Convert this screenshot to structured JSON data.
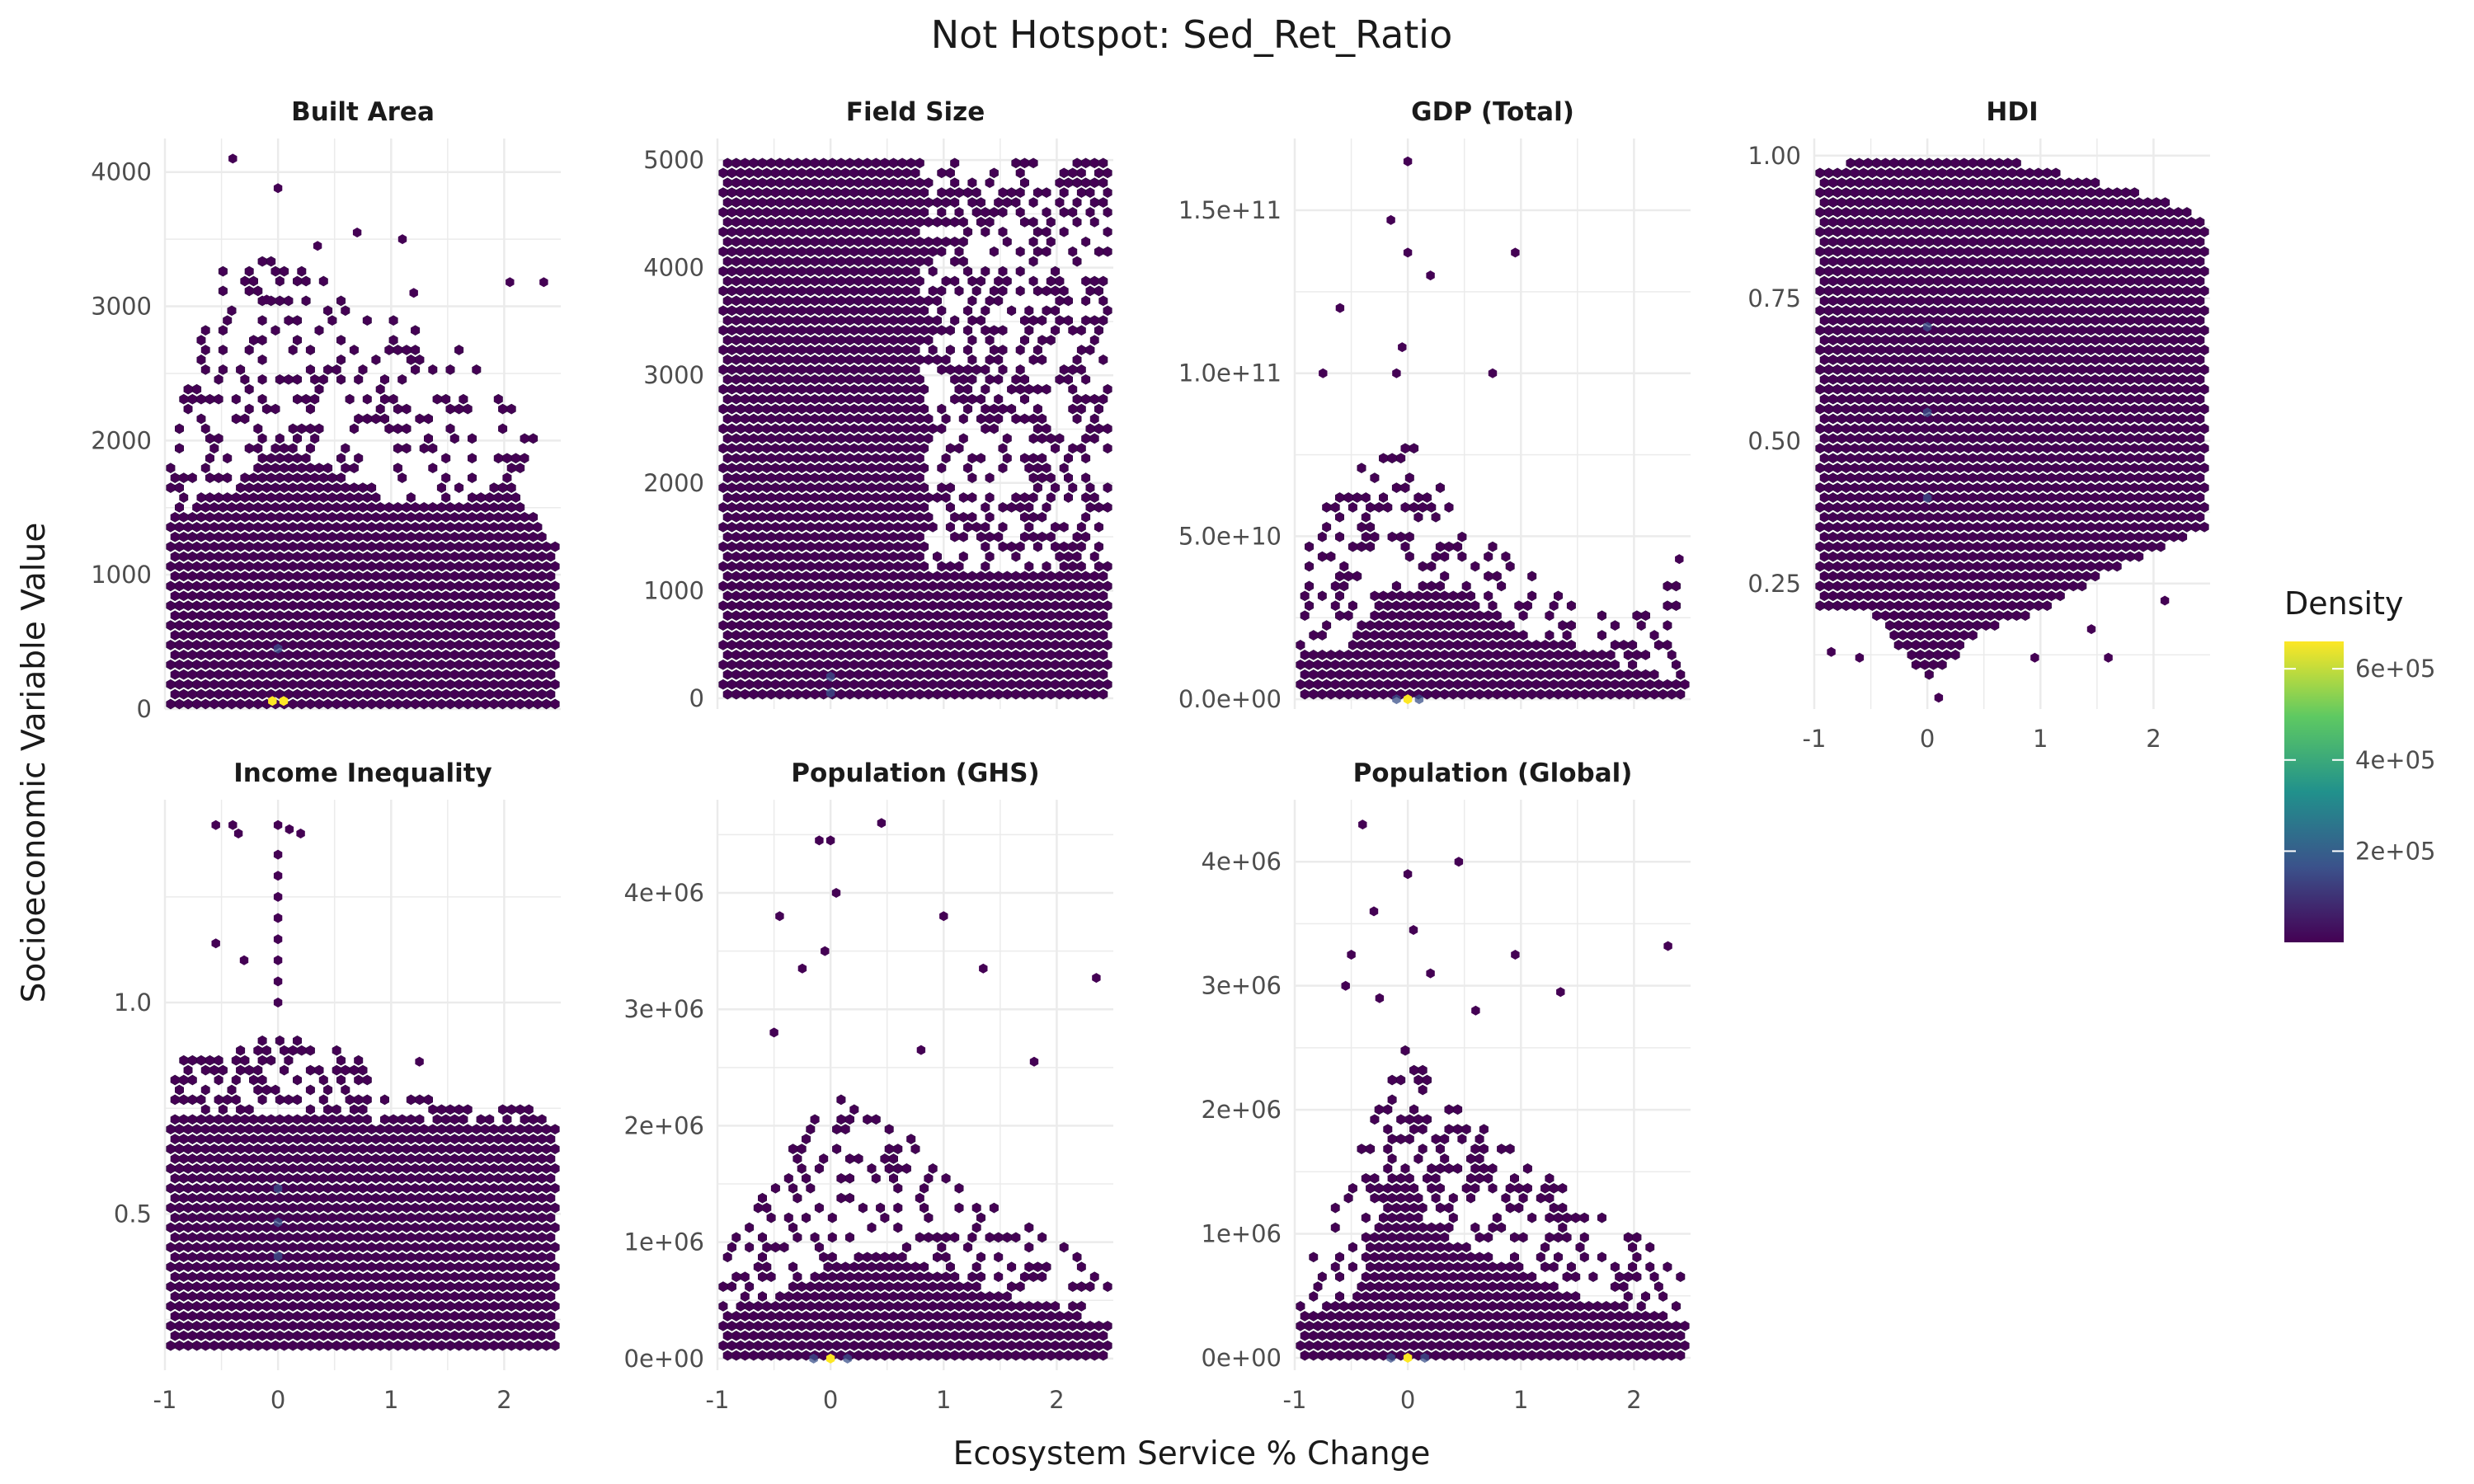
{
  "chart_data": {
    "type": "hexbin",
    "title": "Not Hotspot: Sed_Ret_Ratio",
    "xlabel": "Ecosystem Service % Change",
    "ylabel": "Socioeconomic Variable Value",
    "xlim": [
      -1,
      2.5
    ],
    "x_ticks": [
      "-1",
      "0",
      "1",
      "2"
    ],
    "grid": true,
    "colors": {
      "fill_base": "#440154",
      "hot_medium": "#3b528b",
      "hot_peak": "#fde725",
      "grid": "#ebebeb"
    },
    "legend": {
      "title": "Density",
      "position": "right",
      "ticks": [
        "2e+05",
        "4e+05",
        "6e+05"
      ],
      "tick_values": [
        200000,
        400000,
        600000
      ],
      "range": [
        0,
        660000
      ],
      "colormap": [
        "#440154",
        "#3b528b",
        "#21918c",
        "#5ec962",
        "#fde725"
      ]
    },
    "panels": [
      {
        "label": "Built Area",
        "ylim": [
          0,
          4250
        ],
        "y_ticks": [
          {
            "v": 0,
            "t": "0"
          },
          {
            "v": 1000,
            "t": "1000"
          },
          {
            "v": 2000,
            "t": "2000"
          },
          {
            "v": 3000,
            "t": "3000"
          },
          {
            "v": 4000,
            "t": "4000"
          }
        ],
        "dense_min": 0,
        "dense_max_profile": [
          [
            -0.95,
            1450
          ],
          [
            -0.6,
            1550
          ],
          [
            -0.3,
            1700
          ],
          [
            0,
            2050
          ],
          [
            0.5,
            1750
          ],
          [
            1.0,
            1550
          ],
          [
            1.5,
            1500
          ],
          [
            2.0,
            1700
          ],
          [
            2.25,
            1450
          ],
          [
            2.4,
            1250
          ]
        ],
        "sparse_max_profile": [
          [
            -0.95,
            2000
          ],
          [
            -0.5,
            3300
          ],
          [
            0,
            3400
          ],
          [
            0.5,
            3200
          ],
          [
            1.0,
            2900
          ],
          [
            1.5,
            2800
          ],
          [
            2.0,
            2300
          ],
          [
            2.4,
            1900
          ]
        ],
        "sparse_density": 0.3,
        "outliers": [
          [
            -0.4,
            4100
          ],
          [
            0,
            3880
          ],
          [
            -0.1,
            3050
          ],
          [
            0.35,
            3450
          ],
          [
            0.7,
            3550
          ],
          [
            1.1,
            3500
          ],
          [
            2.05,
            3180
          ],
          [
            2.35,
            3180
          ],
          [
            1.2,
            3100
          ]
        ],
        "hot": [
          [
            -0.05,
            60,
            "peak"
          ],
          [
            0.05,
            60,
            "peak"
          ],
          [
            0,
            450,
            "mid"
          ]
        ]
      },
      {
        "label": "Field Size",
        "ylim": [
          -100,
          5200
        ],
        "y_ticks": [
          {
            "v": 0,
            "t": "0"
          },
          {
            "v": 1000,
            "t": "1000"
          },
          {
            "v": 2000,
            "t": "2000"
          },
          {
            "v": 3000,
            "t": "3000"
          },
          {
            "v": 4000,
            "t": "4000"
          },
          {
            "v": 5000,
            "t": "5000"
          }
        ],
        "dense_min": 0,
        "dense_max_profile": [
          [
            -0.95,
            5000
          ],
          [
            0.8,
            5000
          ],
          [
            0.85,
            1150
          ],
          [
            2.45,
            1150
          ]
        ],
        "sparse_max_profile": [
          [
            0.85,
            5000
          ],
          [
            2.45,
            5000
          ]
        ],
        "sparse_density": 0.45,
        "outliers": [],
        "hot": [
          [
            0,
            50,
            "mid"
          ],
          [
            0,
            200,
            "mid"
          ]
        ]
      },
      {
        "label": "GDP (Total)",
        "ylim": [
          -3000000000,
          172000000000
        ],
        "y_ticks": [
          {
            "v": 0,
            "t": "0.0e+00"
          },
          {
            "v": 50000000000,
            "t": "5.0e+10"
          },
          {
            "v": 100000000000,
            "t": "1.0e+11"
          },
          {
            "v": 150000000000,
            "t": "1.5e+11"
          }
        ],
        "dense_min": 0,
        "dense_max_profile": [
          [
            -0.95,
            16000000000
          ],
          [
            -0.5,
            16000000000
          ],
          [
            -0.2,
            33000000000
          ],
          [
            0.3,
            36000000000
          ],
          [
            1.0,
            20000000000
          ],
          [
            1.6,
            15000000000
          ],
          [
            2.0,
            9000000000
          ],
          [
            2.45,
            6000000000
          ]
        ],
        "sparse_max_profile": [
          [
            -0.95,
            50000000000
          ],
          [
            -0.5,
            70000000000
          ],
          [
            0,
            80000000000
          ],
          [
            0.5,
            62000000000
          ],
          [
            1.0,
            40000000000
          ],
          [
            1.5,
            32000000000
          ],
          [
            2.0,
            26000000000
          ],
          [
            2.45,
            42000000000
          ]
        ],
        "sparse_density": 0.3,
        "outliers": [
          [
            0,
            165000000000
          ],
          [
            -0.15,
            147000000000
          ],
          [
            0,
            137000000000
          ],
          [
            0.2,
            130000000000
          ],
          [
            0.95,
            137000000000
          ],
          [
            -0.6,
            120000000000
          ],
          [
            -0.75,
            100000000000
          ],
          [
            0.75,
            100000000000
          ],
          [
            -0.1,
            100000000000
          ],
          [
            -0.05,
            108000000000
          ],
          [
            2.4,
            43000000000
          ]
        ],
        "hot": [
          [
            0,
            0,
            "peak"
          ],
          [
            -0.1,
            0,
            "mid"
          ],
          [
            0.1,
            0,
            "mid"
          ]
        ]
      },
      {
        "label": "HDI",
        "ylim": [
          0.03,
          1.03
        ],
        "y_ticks": [
          {
            "v": 0.25,
            "t": "0.25"
          },
          {
            "v": 0.5,
            "t": "0.50"
          },
          {
            "v": 0.75,
            "t": "0.75"
          },
          {
            "v": 1.0,
            "t": "1.00"
          }
        ],
        "dense_min_profile": [
          [
            -0.95,
            0.2
          ],
          [
            -0.5,
            0.2
          ],
          [
            0,
            0.08
          ],
          [
            0.5,
            0.17
          ],
          [
            1.0,
            0.2
          ],
          [
            1.5,
            0.26
          ],
          [
            2.0,
            0.31
          ],
          [
            2.45,
            0.34
          ]
        ],
        "dense_max_profile": [
          [
            -0.95,
            0.97
          ],
          [
            -0.5,
            1.0
          ],
          [
            0.5,
            1.0
          ],
          [
            1.0,
            0.98
          ],
          [
            2.0,
            0.93
          ],
          [
            2.45,
            0.89
          ]
        ],
        "sparse_max_profile": null,
        "sparse_density": 0,
        "outliers": [
          [
            -0.85,
            0.13
          ],
          [
            -0.6,
            0.12
          ],
          [
            0.1,
            0.05
          ],
          [
            0.95,
            0.12
          ],
          [
            1.45,
            0.17
          ],
          [
            1.6,
            0.12
          ],
          [
            2.1,
            0.22
          ]
        ],
        "hot": [
          [
            0,
            0.4,
            "mid"
          ],
          [
            0,
            0.55,
            "mid"
          ],
          [
            0,
            0.7,
            "mid"
          ]
        ]
      },
      {
        "label": "Income Inequality",
        "ylim": [
          0.13,
          1.48
        ],
        "y_ticks": [
          {
            "v": 0.5,
            "t": "0.5"
          },
          {
            "v": 1.0,
            "t": "1.0"
          }
        ],
        "dense_min": 0.17,
        "dense_max_profile": [
          [
            -0.95,
            0.73
          ],
          [
            0.75,
            0.73
          ],
          [
            0.8,
            0.72
          ],
          [
            2.45,
            0.72
          ]
        ],
        "sparse_max_profile": [
          [
            -0.95,
            0.76
          ],
          [
            -0.9,
            0.88
          ],
          [
            -0.4,
            0.88
          ],
          [
            0,
            0.93
          ],
          [
            0.3,
            0.93
          ],
          [
            0.8,
            0.86
          ],
          [
            0.85,
            0.78
          ],
          [
            2.45,
            0.75
          ]
        ],
        "sparse_density": 0.55,
        "outliers": [
          [
            -0.55,
            1.42
          ],
          [
            -0.4,
            1.42
          ],
          [
            -0.35,
            1.4
          ],
          [
            0,
            1.42
          ],
          [
            0.1,
            1.41
          ],
          [
            0.2,
            1.4
          ],
          [
            0,
            1.35
          ],
          [
            0,
            1.3
          ],
          [
            0,
            1.25
          ],
          [
            0,
            1.2
          ],
          [
            0,
            1.15
          ],
          [
            0,
            1.1
          ],
          [
            0,
            1.05
          ],
          [
            0,
            1.0
          ],
          [
            -0.55,
            1.14
          ],
          [
            -0.3,
            1.1
          ],
          [
            1.25,
            0.86
          ]
        ],
        "hot": [
          [
            0,
            0.4,
            "mid"
          ],
          [
            0,
            0.48,
            "mid"
          ],
          [
            0,
            0.56,
            "mid"
          ]
        ]
      },
      {
        "label": "Population (GHS)",
        "ylim": [
          -100000,
          4800000
        ],
        "y_ticks": [
          {
            "v": 0,
            "t": "0e+00"
          },
          {
            "v": 1000000,
            "t": "1e+06"
          },
          {
            "v": 2000000,
            "t": "2e+06"
          },
          {
            "v": 3000000,
            "t": "3e+06"
          },
          {
            "v": 4000000,
            "t": "4e+06"
          }
        ],
        "dense_min": 0,
        "dense_max_profile": [
          [
            -0.95,
            400000
          ],
          [
            -0.5,
            500000
          ],
          [
            0,
            850000
          ],
          [
            0.5,
            900000
          ],
          [
            1.0,
            750000
          ],
          [
            1.5,
            550000
          ],
          [
            2.0,
            450000
          ],
          [
            2.45,
            300000
          ]
        ],
        "sparse_max_profile": [
          [
            -0.95,
            900000
          ],
          [
            -0.5,
            1600000
          ],
          [
            0,
            2300000
          ],
          [
            0.5,
            2100000
          ],
          [
            1.0,
            1600000
          ],
          [
            1.5,
            1300000
          ],
          [
            2.0,
            1000000
          ],
          [
            2.45,
            800000
          ]
        ],
        "sparse_density": 0.35,
        "outliers": [
          [
            0.45,
            4600000
          ],
          [
            -0.1,
            4450000
          ],
          [
            0,
            4450000
          ],
          [
            0.05,
            4000000
          ],
          [
            -0.45,
            3800000
          ],
          [
            1.0,
            3800000
          ],
          [
            -0.25,
            3350000
          ],
          [
            -0.05,
            3500000
          ],
          [
            1.35,
            3350000
          ],
          [
            2.35,
            3270000
          ],
          [
            -0.5,
            2800000
          ],
          [
            0.8,
            2650000
          ],
          [
            1.8,
            2550000
          ]
        ],
        "hot": [
          [
            0,
            0,
            "peak"
          ],
          [
            -0.15,
            0,
            "mid"
          ],
          [
            0.15,
            0,
            "mid"
          ]
        ]
      },
      {
        "label": "Population (Global)",
        "ylim": [
          -100000,
          4500000
        ],
        "y_ticks": [
          {
            "v": 0,
            "t": "0e+00"
          },
          {
            "v": 1000000,
            "t": "1e+06"
          },
          {
            "v": 2000000,
            "t": "2e+06"
          },
          {
            "v": 3000000,
            "t": "3e+06"
          },
          {
            "v": 4000000,
            "t": "4e+06"
          }
        ],
        "dense_min": 0,
        "dense_max_profile": [
          [
            -0.95,
            350000
          ],
          [
            -0.5,
            500000
          ],
          [
            -0.1,
            1500000
          ],
          [
            0,
            1650000
          ],
          [
            0.2,
            1000000
          ],
          [
            0.5,
            900000
          ],
          [
            1.0,
            700000
          ],
          [
            1.5,
            500000
          ],
          [
            2.0,
            400000
          ],
          [
            2.45,
            300000
          ]
        ],
        "sparse_max_profile": [
          [
            -0.95,
            650000
          ],
          [
            -0.5,
            1500000
          ],
          [
            0,
            2600000
          ],
          [
            0.5,
            2100000
          ],
          [
            1.0,
            1600000
          ],
          [
            1.5,
            1300000
          ],
          [
            2.0,
            1000000
          ],
          [
            2.45,
            700000
          ]
        ],
        "sparse_density": 0.35,
        "outliers": [
          [
            -0.4,
            4300000
          ],
          [
            0.45,
            4000000
          ],
          [
            0,
            3900000
          ],
          [
            -0.3,
            3600000
          ],
          [
            0.05,
            3450000
          ],
          [
            -0.5,
            3250000
          ],
          [
            0.95,
            3250000
          ],
          [
            -0.55,
            3000000
          ],
          [
            0.2,
            3100000
          ],
          [
            1.35,
            2950000
          ],
          [
            2.3,
            3320000
          ],
          [
            0.6,
            2800000
          ],
          [
            -0.25,
            2900000
          ]
        ],
        "hot": [
          [
            0,
            0,
            "peak"
          ],
          [
            -0.15,
            0,
            "mid"
          ],
          [
            0.15,
            0,
            "mid"
          ]
        ]
      }
    ]
  }
}
